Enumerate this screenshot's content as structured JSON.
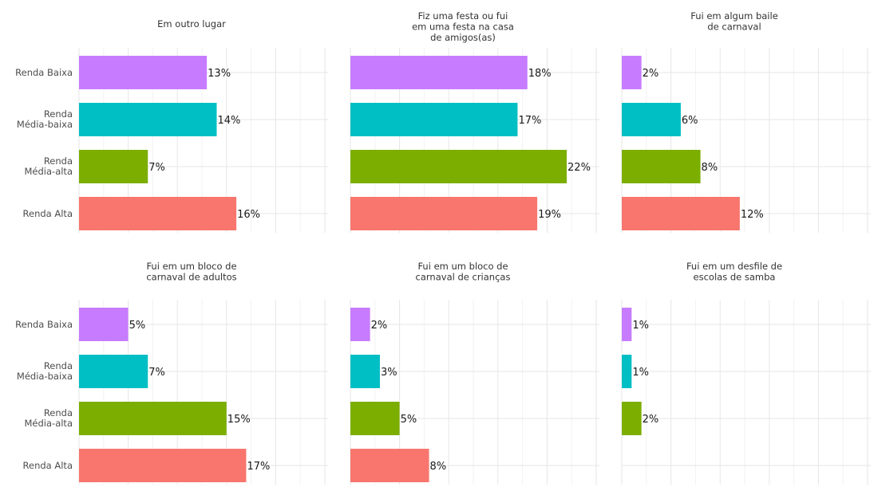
{
  "chart_data": {
    "type": "bar",
    "orientation": "horizontal",
    "grid": true,
    "legend": "none",
    "categories": [
      [
        "Renda Baixa"
      ],
      [
        "Renda",
        "Média-baixa"
      ],
      [
        "Renda",
        "Média-alta"
      ],
      [
        "Renda Alta"
      ]
    ],
    "colors": [
      "#C77CFF",
      "#00BFC4",
      "#7CAE00",
      "#F8766D"
    ],
    "xlim": [
      0,
      0.26
    ],
    "panels": [
      {
        "title": [
          "Em outro lugar"
        ],
        "values": [
          0.13,
          0.14,
          0.07,
          0.16
        ],
        "labels": [
          "13%",
          "14%",
          "7%",
          "16%"
        ]
      },
      {
        "title": [
          "Fiz uma festa ou fui",
          "em uma festa na casa",
          "de amigos(as)"
        ],
        "values": [
          0.18,
          0.17,
          0.22,
          0.19
        ],
        "labels": [
          "18%",
          "17%",
          "22%",
          "19%"
        ]
      },
      {
        "title": [
          "Fui em algum baile",
          "de carnaval"
        ],
        "values": [
          0.02,
          0.06,
          0.08,
          0.12
        ],
        "labels": [
          "2%",
          "6%",
          "8%",
          "12%"
        ]
      },
      {
        "title": [
          "Fui em um bloco de",
          "carnaval de adultos"
        ],
        "values": [
          0.05,
          0.07,
          0.15,
          0.17
        ],
        "labels": [
          "5%",
          "7%",
          "15%",
          "17%"
        ]
      },
      {
        "title": [
          "Fui em um bloco de",
          "carnaval de crianças"
        ],
        "values": [
          0.02,
          0.03,
          0.05,
          0.08
        ],
        "labels": [
          "2%",
          "3%",
          "5%",
          "8%"
        ]
      },
      {
        "title": [
          "Fui em um desfile de",
          "escolas de samba"
        ],
        "values": [
          0.01,
          0.01,
          0.02,
          null
        ],
        "labels": [
          "1%",
          "1%",
          "2%",
          ""
        ]
      }
    ]
  }
}
